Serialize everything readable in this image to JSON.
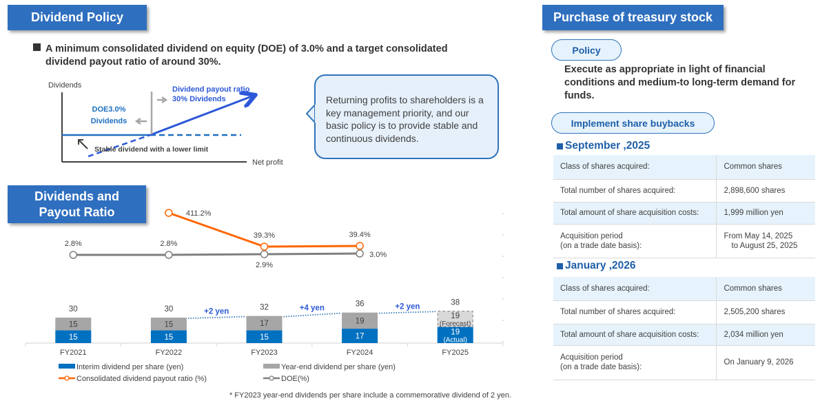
{
  "dividend_policy": {
    "title": "Dividend Policy",
    "statement_line1": "A minimum consolidated dividend on equity (DOE) of 3.0% and a target consolidated",
    "statement_line2": "dividend payout ratio of around 30%.",
    "diagram": {
      "y_axis_label": "Dividends",
      "x_axis_label": "Net profit",
      "doe_label_line1": "DOE3.0%",
      "doe_label_line2": "Dividends",
      "payout_label_line1": "Dividend payout ratio",
      "payout_label_line2": "30% Dividends",
      "floor_label": "Stable dividend with a lower limit"
    },
    "speech_text": "Returning profits to shareholders is a key management priority, and our basic policy is to provide stable and continuous dividends."
  },
  "dividends_payout": {
    "title_line1": "Dividends and",
    "title_line2": "Payout Ratio",
    "footnote": "* FY2023 year-end dividends per share include a commemorative dividend of 2 yen."
  },
  "chart_data": {
    "type": "bar",
    "stacked": true,
    "categories": [
      "FY2021",
      "FY2022",
      "FY2023",
      "FY2024",
      "FY2025"
    ],
    "series": [
      {
        "name": "Interim dividend per share (yen)",
        "type": "bar",
        "color": "#0070c0",
        "values": [
          15,
          15,
          15,
          17,
          19
        ]
      },
      {
        "name": "Year-end dividend per share (yen)",
        "type": "bar",
        "color": "#a6a6a6",
        "values": [
          15,
          15,
          17,
          19,
          19
        ]
      },
      {
        "name": "Consolidated dividend payout ratio (%)",
        "type": "line",
        "color": "#ff6600",
        "values": [
          null,
          411.2,
          39.3,
          39.4,
          null
        ]
      },
      {
        "name": "DOE(%)",
        "type": "line",
        "color": "#7f7f7f",
        "values": [
          2.8,
          2.8,
          2.9,
          3.0,
          null
        ]
      }
    ],
    "totals": [
      30,
      30,
      32,
      36,
      38
    ],
    "totals_labels": [
      "30",
      "30",
      "32",
      "36",
      "38"
    ],
    "segment_labels": {
      "interim": [
        "15",
        "15",
        "15",
        "17",
        "19"
      ],
      "year_end": [
        "15",
        "15",
        "17",
        "19",
        "19"
      ]
    },
    "payout_labels": [
      "",
      "411.2%",
      "39.3%",
      "39.4%",
      ""
    ],
    "doe_labels": [
      "2.8%",
      "2.8%",
      "2.9%",
      "3.0%",
      ""
    ],
    "fy2025_interim_note": "(Actual)",
    "fy2025_year_end_note": "(Forecast)",
    "fy2025_year_end_is_forecast": true,
    "increase_annotations": [
      {
        "from": "FY2022",
        "to": "FY2023",
        "label": "+2 yen"
      },
      {
        "from": "FY2023",
        "to": "FY2024",
        "label": "+4 yen"
      },
      {
        "from": "FY2024",
        "to": "FY2025",
        "label": "+2 yen"
      }
    ],
    "legend": [
      {
        "label": "Interim dividend per share (yen)",
        "kind": "bar",
        "color": "#0070c0"
      },
      {
        "label": "Year-end dividend per share (yen)",
        "kind": "bar",
        "color": "#a6a6a6"
      },
      {
        "label": "Consolidated dividend payout ratio (%)",
        "kind": "line",
        "color": "#ff6600"
      },
      {
        "label": "DOE(%)",
        "kind": "line",
        "color": "#7f7f7f"
      }
    ],
    "legend_position": "bottom",
    "title": "",
    "xlabel": "",
    "ylabel": ""
  },
  "treasury": {
    "title": "Purchase of treasury stock",
    "policy_pill": "Policy",
    "policy_text": "Execute as appropriate in light of financial conditions and medium-to long-term demand for funds.",
    "buyback_pill": "Implement share buybacks",
    "periods": [
      {
        "heading": "September ,2025",
        "rows": [
          {
            "label": "Class of shares acquired:",
            "value": "Common shares"
          },
          {
            "label": "Total number of shares acquired:",
            "value": "2,898,600 shares"
          },
          {
            "label": "Total amount of share acquisition costs:",
            "value": "1,999 million yen"
          },
          {
            "label_line1": "Acquisition period",
            "label_line2": "(on a trade date basis):",
            "value_line1": "From May 14, 2025",
            "value_line2": "to August 25, 2025"
          }
        ]
      },
      {
        "heading": "January ,2026",
        "rows": [
          {
            "label": "Class of shares acquired:",
            "value": "Common shares"
          },
          {
            "label": "Total number of shares acquired:",
            "value": "2,505,200 shares"
          },
          {
            "label": "Total amount of share acquisition costs:",
            "value": "2,034 million yen"
          },
          {
            "label_line1": "Acquisition period",
            "label_line2": "(on a trade date basis):",
            "value": "On January 9, 2026"
          }
        ]
      }
    ]
  }
}
